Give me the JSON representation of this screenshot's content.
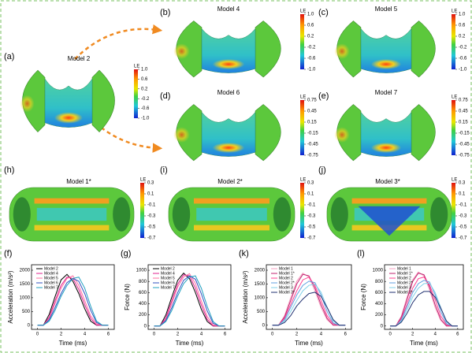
{
  "panels": [
    {
      "label": "(a)",
      "title": "Model 2",
      "colorbar_title": "LE",
      "colorbar_ticks": [
        {
          "value": 1,
          "label": "1.0"
        },
        0.6,
        0.2,
        -0.2,
        -0.6,
        {
          "value": -1,
          "label": "-1.0"
        }
      ]
    },
    {
      "label": "(b)",
      "title": "Model 4",
      "colorbar_title": "LE",
      "colorbar_ticks": [
        {
          "value": 1,
          "label": "1.0"
        },
        0.6,
        0.2,
        -0.2,
        -0.6,
        {
          "value": -1,
          "label": "-1.0"
        }
      ]
    },
    {
      "label": "(c)",
      "title": "Model 5",
      "colorbar_title": "LE",
      "colorbar_ticks": [
        {
          "value": 1,
          "label": "1.0"
        },
        0.6,
        0.2,
        -0.2,
        -0.6,
        {
          "value": -1,
          "label": "-1.0"
        }
      ]
    },
    {
      "label": "(d)",
      "title": "Model 6",
      "colorbar_title": "LE",
      "colorbar_ticks": [
        0.75,
        0.45,
        0.15,
        -0.15,
        -0.45,
        -0.75
      ]
    },
    {
      "label": "(e)",
      "title": "Model 7",
      "colorbar_title": "LE",
      "colorbar_ticks": [
        0.75,
        0.45,
        0.15,
        -0.15,
        -0.45,
        -0.75
      ]
    },
    {
      "label": "(h)",
      "title": "Model 1*",
      "colorbar_title": "LE",
      "colorbar_ticks": [
        0.3,
        0.1,
        -0.1,
        -0.3,
        -0.5,
        -0.7
      ]
    },
    {
      "label": "(i)",
      "title": "Model 2*",
      "colorbar_title": "LE",
      "colorbar_ticks": [
        0.3,
        0.1,
        -0.1,
        -0.3,
        -0.5,
        -0.7
      ]
    },
    {
      "label": "(j)",
      "title": "Model 3*",
      "colorbar_title": "LE",
      "colorbar_ticks": [
        0.3,
        0.1,
        -0.1,
        -0.3,
        -0.5,
        -0.7
      ]
    }
  ],
  "chart_data": [
    {
      "type": "line",
      "label": "(f)",
      "x_label": "Time (ms)",
      "y_label": "Acceleration (m/s²)",
      "x": [
        0,
        0.5,
        1,
        1.5,
        2,
        2.5,
        3,
        3.5,
        4,
        4.5,
        5,
        5.5,
        6
      ],
      "xlim": [
        -0.5,
        6.5
      ],
      "xticks": [
        0,
        2,
        4,
        6
      ],
      "ylim": [
        -150,
        2200
      ],
      "yticks": [
        0,
        500,
        1000,
        1500,
        2000
      ],
      "series": [
        {
          "name": "Model 2",
          "color": "#000000",
          "values": [
            0,
            0,
            400,
            1050,
            1650,
            1850,
            1600,
            1150,
            600,
            150,
            0,
            0,
            0
          ]
        },
        {
          "name": "Model 4",
          "color": "#e0208f",
          "values": [
            0,
            0,
            300,
            900,
            1450,
            1750,
            1700,
            1300,
            750,
            250,
            0,
            0,
            0
          ]
        },
        {
          "name": "Model 5",
          "color": "#ff6fa0",
          "values": [
            0,
            0,
            250,
            800,
            1350,
            1700,
            1800,
            1450,
            900,
            350,
            50,
            0,
            0
          ]
        },
        {
          "name": "Model 6",
          "color": "#3050c0",
          "values": [
            0,
            0,
            200,
            650,
            1150,
            1550,
            1700,
            1600,
            1150,
            550,
            100,
            0,
            0
          ]
        },
        {
          "name": "Model 7",
          "color": "#20a0c0",
          "values": [
            0,
            0,
            150,
            550,
            1050,
            1450,
            1700,
            1750,
            1350,
            700,
            150,
            0,
            0
          ]
        }
      ]
    },
    {
      "type": "line",
      "label": "(g)",
      "x_label": "Time (ms)",
      "y_label": "Force (N)",
      "x": [
        0,
        0.5,
        1,
        1.5,
        2,
        2.5,
        3,
        3.5,
        4,
        4.5,
        5,
        5.5,
        6
      ],
      "xlim": [
        -0.5,
        6.5
      ],
      "xticks": [
        0,
        2,
        4,
        6
      ],
      "ylim": [
        -60,
        1100
      ],
      "yticks": [
        0,
        200,
        400,
        600,
        800,
        1000
      ],
      "series": [
        {
          "name": "Model 2",
          "color": "#000000",
          "values": [
            0,
            0,
            200,
            520,
            820,
            950,
            850,
            600,
            300,
            80,
            0,
            0,
            0
          ]
        },
        {
          "name": "Model 4",
          "color": "#e0208f",
          "values": [
            0,
            0,
            150,
            450,
            750,
            920,
            900,
            680,
            380,
            120,
            0,
            0,
            0
          ]
        },
        {
          "name": "Model 5",
          "color": "#ff6fa0",
          "values": [
            0,
            0,
            120,
            400,
            700,
            880,
            940,
            760,
            450,
            170,
            20,
            0,
            0
          ]
        },
        {
          "name": "Model 6",
          "color": "#3050c0",
          "values": [
            0,
            0,
            100,
            330,
            600,
            820,
            900,
            840,
            580,
            270,
            50,
            0,
            0
          ]
        },
        {
          "name": "Model 7",
          "color": "#20a0c0",
          "values": [
            0,
            0,
            80,
            280,
            540,
            760,
            880,
            900,
            680,
            350,
            80,
            0,
            0
          ]
        }
      ]
    },
    {
      "type": "line",
      "label": "(k)",
      "x_label": "Time (ms)",
      "y_label": "Acceleration (m/s²)",
      "x": [
        0,
        0.5,
        1,
        1.5,
        2,
        2.5,
        3,
        3.5,
        4,
        4.5,
        5,
        5.5,
        6
      ],
      "xlim": [
        -0.5,
        6.5
      ],
      "xticks": [
        0,
        2,
        4,
        6
      ],
      "ylim": [
        -150,
        2200
      ],
      "yticks": [
        0,
        500,
        1000,
        1500,
        2000
      ],
      "series": [
        {
          "name": "Model 1",
          "color": "#f4a0c0",
          "values": [
            0,
            0,
            350,
            1000,
            1600,
            1900,
            1750,
            1250,
            650,
            200,
            0,
            0,
            0
          ]
        },
        {
          "name": "Model 1*",
          "color": "#c0206f",
          "values": [
            0,
            0,
            300,
            900,
            1500,
            1850,
            1800,
            1350,
            750,
            250,
            0,
            0,
            0
          ]
        },
        {
          "name": "Model 2",
          "color": "#ff4090",
          "values": [
            0,
            0,
            250,
            750,
            1250,
            1650,
            1750,
            1450,
            900,
            350,
            50,
            0,
            0
          ]
        },
        {
          "name": "Model 2*",
          "color": "#60a0e0",
          "values": [
            0,
            0,
            200,
            650,
            1100,
            1450,
            1600,
            1550,
            1100,
            500,
            80,
            0,
            0
          ]
        },
        {
          "name": "Model 3",
          "color": "#80d0e8",
          "values": [
            0,
            0,
            150,
            500,
            900,
            1250,
            1450,
            1500,
            1200,
            650,
            150,
            0,
            0
          ]
        },
        {
          "name": "Model 3*",
          "color": "#203070",
          "values": [
            0,
            0,
            100,
            350,
            700,
            950,
            1150,
            1200,
            1050,
            650,
            200,
            0,
            0
          ]
        }
      ]
    },
    {
      "type": "line",
      "label": "(l)",
      "x_label": "Time (ms)",
      "y_label": "Force (N)",
      "x": [
        0,
        0.5,
        1,
        1.5,
        2,
        2.5,
        3,
        3.5,
        4,
        4.5,
        5,
        5.5,
        6
      ],
      "xlim": [
        -0.5,
        6.5
      ],
      "xticks": [
        0,
        2,
        4,
        6
      ],
      "ylim": [
        -60,
        1100
      ],
      "yticks": [
        0,
        200,
        400,
        600,
        800,
        1000
      ],
      "series": [
        {
          "name": "Model 1",
          "color": "#f4a0c0",
          "values": [
            0,
            0,
            180,
            520,
            830,
            970,
            900,
            650,
            330,
            100,
            0,
            0,
            0
          ]
        },
        {
          "name": "Model 1*",
          "color": "#c0206f",
          "values": [
            0,
            0,
            160,
            480,
            800,
            950,
            920,
            700,
            380,
            120,
            0,
            0,
            0
          ]
        },
        {
          "name": "Model 2",
          "color": "#ff4090",
          "values": [
            0,
            0,
            130,
            400,
            680,
            850,
            880,
            740,
            470,
            180,
            20,
            0,
            0
          ]
        },
        {
          "name": "Model 2*",
          "color": "#60a0e0",
          "values": [
            0,
            0,
            110,
            350,
            600,
            760,
            820,
            790,
            560,
            260,
            40,
            0,
            0
          ]
        },
        {
          "name": "Model 3",
          "color": "#80d0e8",
          "values": [
            0,
            0,
            90,
            290,
            520,
            680,
            760,
            770,
            600,
            330,
            70,
            0,
            0
          ]
        },
        {
          "name": "Model 3*",
          "color": "#203070",
          "values": [
            0,
            0,
            70,
            230,
            420,
            560,
            620,
            620,
            520,
            320,
            90,
            0,
            0
          ]
        }
      ]
    }
  ]
}
